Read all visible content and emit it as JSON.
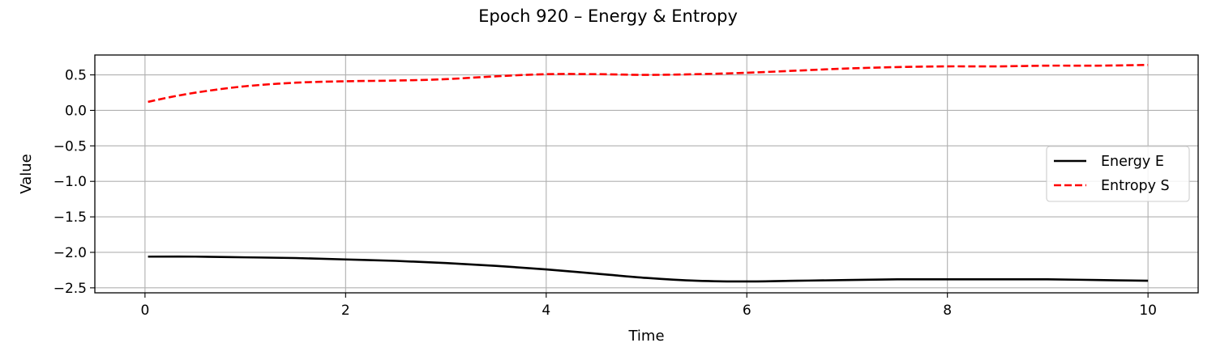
{
  "chart_data": {
    "type": "line",
    "title": "Epoch 920 – Energy & Entropy",
    "xlabel": "Time",
    "ylabel": "Value",
    "xlim": [
      -0.5,
      10.5
    ],
    "ylim": [
      -2.57,
      0.78
    ],
    "xticks": [
      0,
      2,
      4,
      6,
      8,
      10
    ],
    "xtick_labels": [
      "0",
      "2",
      "4",
      "6",
      "8",
      "10"
    ],
    "yticks": [
      0.5,
      0.0,
      -0.5,
      -1.0,
      -1.5,
      -2.0,
      -2.5
    ],
    "ytick_labels": [
      "0.5",
      "0.0",
      "−0.5",
      "−1.0",
      "−1.5",
      "−2.0",
      "−2.5"
    ],
    "grid": true,
    "legend_position": "center-right",
    "series": [
      {
        "name": "Energy E",
        "color": "#000000",
        "style": "solid",
        "x": [
          0.03,
          0.5,
          1.0,
          1.5,
          2.0,
          2.5,
          3.0,
          3.5,
          4.0,
          4.5,
          5.0,
          5.5,
          6.0,
          6.5,
          7.0,
          7.5,
          8.0,
          8.5,
          9.0,
          9.5,
          10.0
        ],
        "y": [
          -2.06,
          -2.06,
          -2.07,
          -2.08,
          -2.1,
          -2.12,
          -2.15,
          -2.19,
          -2.24,
          -2.3,
          -2.36,
          -2.4,
          -2.41,
          -2.4,
          -2.39,
          -2.38,
          -2.38,
          -2.38,
          -2.38,
          -2.39,
          -2.4
        ]
      },
      {
        "name": "Entropy S",
        "color": "#ff0000",
        "style": "dashed",
        "x": [
          0.03,
          0.3,
          0.6,
          1.0,
          1.5,
          2.0,
          2.5,
          3.0,
          3.5,
          4.0,
          4.5,
          5.0,
          5.5,
          6.0,
          6.5,
          7.0,
          7.5,
          8.0,
          8.5,
          9.0,
          9.5,
          10.0
        ],
        "y": [
          0.12,
          0.2,
          0.27,
          0.34,
          0.39,
          0.41,
          0.42,
          0.44,
          0.48,
          0.51,
          0.51,
          0.5,
          0.51,
          0.53,
          0.56,
          0.59,
          0.61,
          0.62,
          0.62,
          0.63,
          0.63,
          0.64
        ]
      }
    ]
  }
}
